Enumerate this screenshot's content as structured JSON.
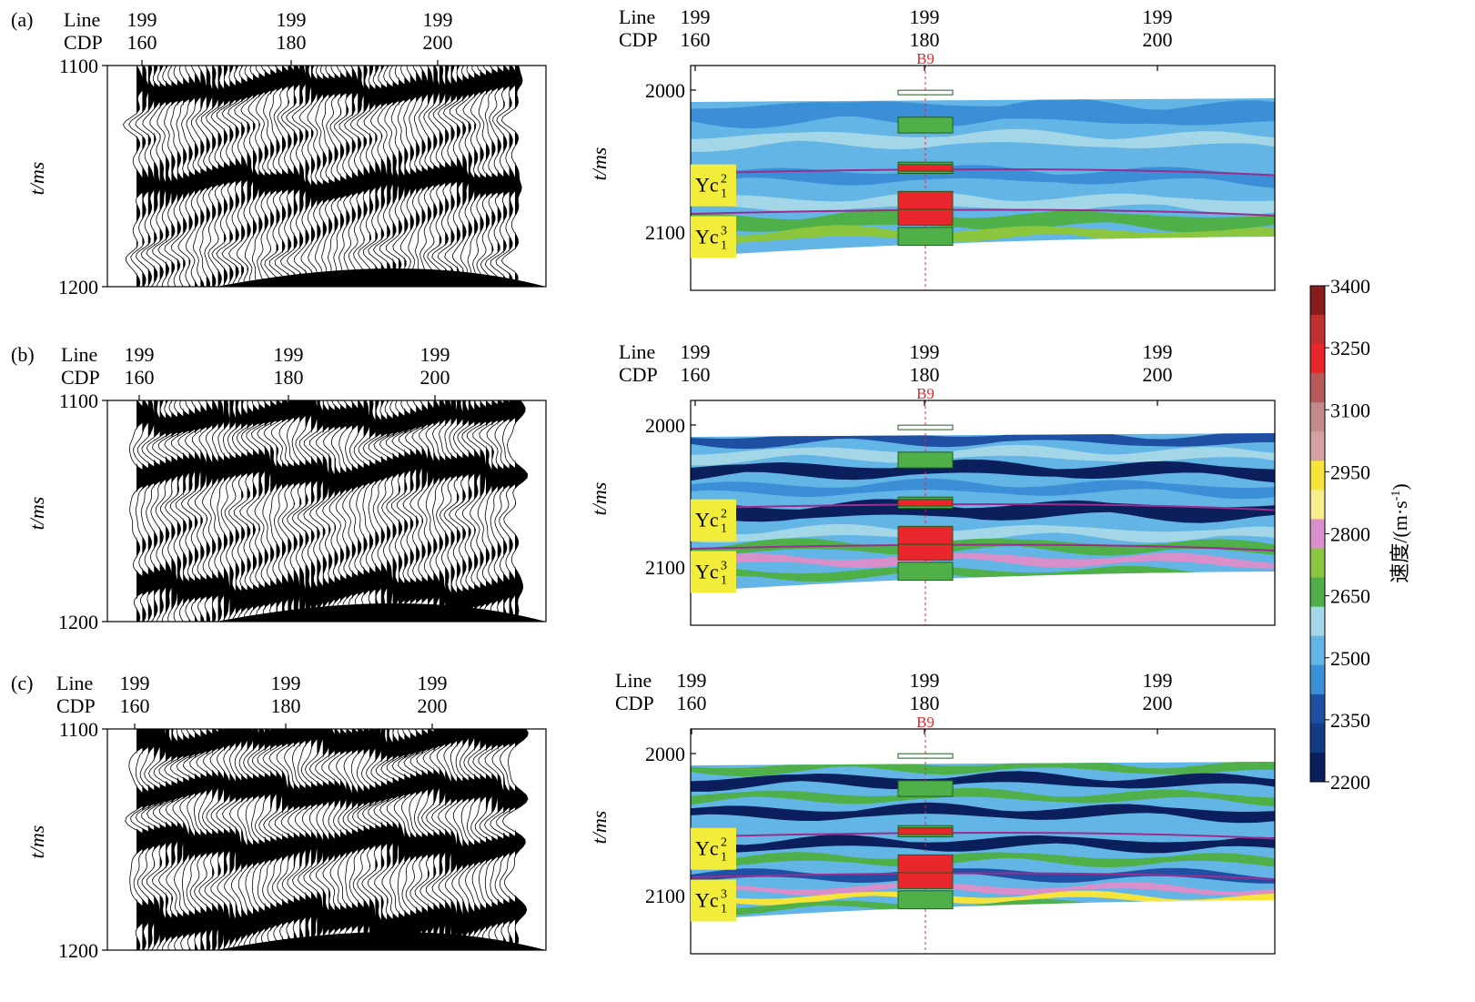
{
  "panel_labels": [
    "(a)",
    "(b)",
    "(c)"
  ],
  "header": {
    "line_label": "Line",
    "cdp_label": "CDP",
    "line_value": "199",
    "cdps": [
      "160",
      "180",
      "200"
    ]
  },
  "axis": {
    "seismic_ylabel": "t/ms",
    "velocity_ylabel": "t/ms"
  },
  "well": {
    "name": "B9"
  },
  "layers": [
    {
      "name": "Yc",
      "sup": "2",
      "sub": "1"
    },
    {
      "name": "Yc",
      "sup": "3",
      "sub": "1"
    }
  ],
  "colorbar": {
    "title": "速度/(m·s",
    "title_sup": "-1",
    "title_close": ")",
    "ticks": [
      "3400",
      "3250",
      "3100",
      "2950",
      "2800",
      "2650",
      "2500",
      "2350",
      "2200"
    ]
  },
  "colors": {
    "deep_blue": "#0a1f5c",
    "blue": "#1f4fa3",
    "mid_blue": "#3a8fd6",
    "light_blue": "#62b5e5",
    "pale_blue": "#a3d6e6",
    "green": "#4fb04a",
    "light_green": "#8cc63f",
    "pink": "#d98fc9",
    "yellow": "#f5e43a",
    "red": "#e8262b",
    "dark_red": "#8a1c1c",
    "label_yellow": "#f2ec3a",
    "horizon_purple": "#9b2d8f"
  },
  "chart_data": [
    {
      "type": "heatmap",
      "panel": "(a)",
      "kind": "seismic-section",
      "x": {
        "cdp_ticks": [
          160,
          180,
          200
        ],
        "line": 199
      },
      "ylim": [
        1100,
        1200
      ],
      "yticks": [
        1100,
        1200
      ],
      "ylabel": "t/ms"
    },
    {
      "type": "heatmap",
      "panel": "(a)",
      "kind": "velocity-section",
      "x": {
        "cdp_ticks": [
          160,
          180,
          200
        ],
        "line": 199
      },
      "yticks": [
        2000,
        2100
      ],
      "ylabel": "t/ms",
      "well": "B9",
      "horizons": [
        "Yc 2 1",
        "Yc 3 1"
      ]
    },
    {
      "type": "heatmap",
      "panel": "(b)",
      "kind": "seismic-section",
      "x": {
        "cdp_ticks": [
          160,
          180,
          200
        ],
        "line": 199
      },
      "ylim": [
        1100,
        1200
      ],
      "yticks": [
        1100,
        1200
      ],
      "ylabel": "t/ms"
    },
    {
      "type": "heatmap",
      "panel": "(b)",
      "kind": "velocity-section",
      "x": {
        "cdp_ticks": [
          160,
          180,
          200
        ],
        "line": 199
      },
      "yticks": [
        2000,
        2100
      ],
      "ylabel": "t/ms",
      "well": "B9",
      "horizons": [
        "Yc 2 1",
        "Yc 3 1"
      ]
    },
    {
      "type": "heatmap",
      "panel": "(c)",
      "kind": "seismic-section",
      "x": {
        "cdp_ticks": [
          160,
          180,
          200
        ],
        "line": 199
      },
      "ylim": [
        1100,
        1200
      ],
      "yticks": [
        1100,
        1200
      ],
      "ylabel": "t/ms"
    },
    {
      "type": "heatmap",
      "panel": "(c)",
      "kind": "velocity-section",
      "x": {
        "cdp_ticks": [
          160,
          180,
          200
        ],
        "line": 199
      },
      "yticks": [
        2000,
        2100
      ],
      "ylabel": "t/ms",
      "well": "B9",
      "horizons": [
        "Yc 2 1",
        "Yc 3 1"
      ]
    }
  ],
  "colorbar_data": {
    "range": [
      2200,
      3400
    ],
    "step": 150,
    "label": "速度/(m·s-1)"
  }
}
